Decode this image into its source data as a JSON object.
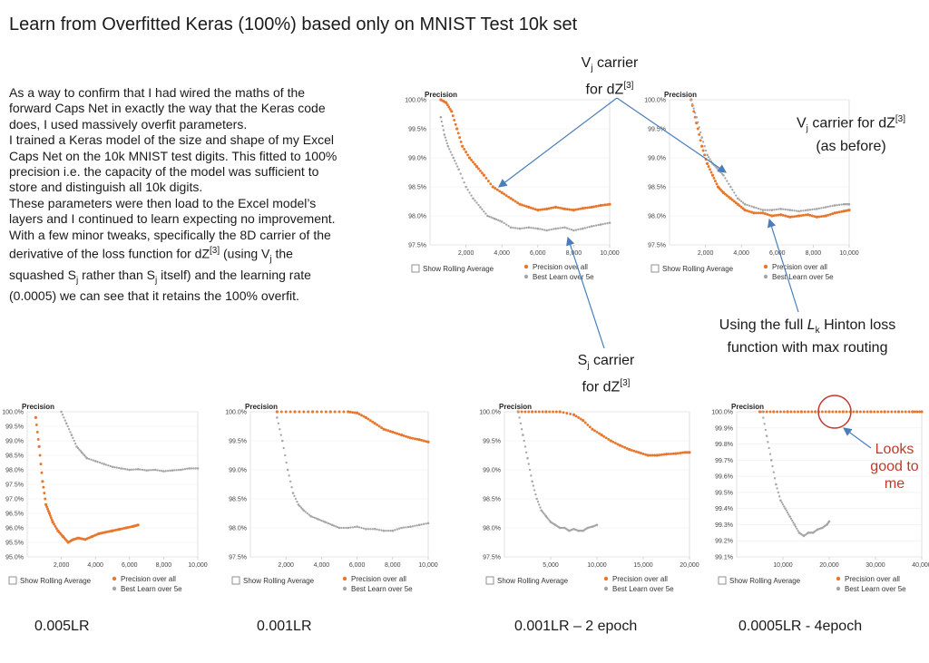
{
  "title": "Learn from Overfitted Keras (100%) based only on MNIST Test 10k set",
  "paragraphs": [
    "As a way to confirm that I had wired the maths of the forward Caps Net in exactly the way that the Keras code does, I used massively overfit parameters.",
    "I trained a Keras model of the size and shape of my Excel Caps Net on the 10k MNIST test digits. This fitted to 100% precision i.e. the capacity of the model was sufficient to store and distinguish all 10k digits.",
    "These parameters were then load to the Excel model’s layers and I continued to learn expecting no improvement."
  ],
  "para_tweak": {
    "a": "With a few minor tweaks, specifically the 8D carrier of the derivative of the loss function for dZ",
    "sup1": "[3]",
    "b": " (using V",
    "sub1": "j",
    "c": " the squashed S",
    "sub2": "j",
    "d": " rather than S",
    "sub3": "j",
    "e": " itself) and the learning rate (0.0005) we can see that it retains the 100% overfit."
  },
  "notes": {
    "vj_top": {
      "l1a": "V",
      "l1sub": "j",
      "l1b": " carrier",
      "l2": "for dZ",
      "sup": "[3]"
    },
    "vj_right": {
      "l1a": "V",
      "l1sub": "j",
      "l1b": " carrier for dZ",
      "sup": "[3]",
      "l2": "(as before)"
    },
    "sj": {
      "l1a": "S",
      "l1sub": "j",
      "l1b": " carrier",
      "l2": "for dZ",
      "sup": "[3]"
    },
    "hinton": {
      "l1a": "Using the full ",
      "l1i": "L",
      "l1sub": "k",
      "l1b": " Hinton loss",
      "l2": "function with max routing"
    },
    "looks_good": {
      "l1": "Looks",
      "l2": "good to",
      "l3": "me"
    }
  },
  "lr_labels": [
    "0.005LR",
    "0.001LR",
    "0.001LR – 2 epoch",
    "0.0005LR - 4epoch"
  ],
  "colors": {
    "orange": "#e8772e",
    "gray": "#a6a6a6",
    "arrow": "#4a7ebb",
    "circle": "#c0392b"
  },
  "chart_data": [
    {
      "type": "scatter",
      "id": "c1",
      "title": "Precision",
      "xticks": [
        "2,000",
        "4,000",
        "6,000",
        "8,000",
        "10,000"
      ],
      "xlim": [
        0,
        10000
      ],
      "yticks": [
        "97.5%",
        "98.0%",
        "98.5%",
        "99.0%",
        "99.5%",
        "100.0%"
      ],
      "ylim": [
        97.5,
        100.0
      ],
      "legend_checkbox": "Show Rolling Average",
      "series": [
        {
          "name": "Precision over all",
          "color": "orange",
          "x": [
            600,
            900,
            1200,
            1500,
            1800,
            2200,
            2600,
            3000,
            3500,
            4000,
            4500,
            5000,
            5500,
            6000,
            6500,
            7000,
            7500,
            8000,
            8500,
            9000,
            9500,
            10000
          ],
          "y": [
            100.0,
            99.95,
            99.8,
            99.5,
            99.2,
            99.0,
            98.85,
            98.7,
            98.5,
            98.4,
            98.3,
            98.2,
            98.15,
            98.1,
            98.12,
            98.15,
            98.12,
            98.1,
            98.13,
            98.15,
            98.18,
            98.2
          ]
        },
        {
          "name": "Best Learn over 5e",
          "color": "gray",
          "x": [
            600,
            800,
            1000,
            1300,
            1600,
            2000,
            2400,
            2800,
            3200,
            3600,
            4000,
            4500,
            5000,
            5500,
            6000,
            6500,
            7000,
            7500,
            8000,
            8500,
            9000,
            9500,
            10000
          ],
          "y": [
            99.7,
            99.4,
            99.2,
            99.0,
            98.8,
            98.5,
            98.3,
            98.15,
            98.0,
            97.95,
            97.9,
            97.8,
            97.78,
            97.8,
            97.78,
            97.75,
            97.78,
            97.8,
            97.75,
            97.78,
            97.82,
            97.85,
            97.88
          ]
        }
      ]
    },
    {
      "type": "scatter",
      "id": "c2",
      "title": "Precision",
      "xticks": [
        "2,000",
        "4,000",
        "6,000",
        "8,000",
        "10,000"
      ],
      "xlim": [
        0,
        10000
      ],
      "yticks": [
        "97.5%",
        "98.0%",
        "98.5%",
        "99.0%",
        "99.5%",
        "100.0%"
      ],
      "ylim": [
        97.5,
        100.0
      ],
      "legend_checkbox": "Show Rolling Average",
      "series": [
        {
          "name": "Precision over all",
          "color": "orange",
          "x": [
            1200,
            1500,
            1800,
            2100,
            2400,
            2700,
            3000,
            3400,
            3800,
            4200,
            4700,
            5200,
            5700,
            6200,
            6700,
            7200,
            7700,
            8200,
            8700,
            9200,
            9700,
            10000
          ],
          "y": [
            100.0,
            99.6,
            99.2,
            98.9,
            98.7,
            98.5,
            98.4,
            98.3,
            98.2,
            98.1,
            98.05,
            98.05,
            98.0,
            98.02,
            97.98,
            98.0,
            98.02,
            97.98,
            98.0,
            98.05,
            98.08,
            98.1
          ]
        },
        {
          "name": "Best Learn over 5e",
          "color": "gray",
          "x": [
            1200,
            1500,
            1800,
            2100,
            2400,
            2700,
            3000,
            3400,
            3800,
            4200,
            4700,
            5200,
            5700,
            6200,
            6700,
            7200,
            7700,
            8200,
            8700,
            9200,
            9700,
            10000
          ],
          "y": [
            100.0,
            99.7,
            99.35,
            99.05,
            98.9,
            98.8,
            98.7,
            98.5,
            98.3,
            98.2,
            98.15,
            98.1,
            98.1,
            98.12,
            98.1,
            98.08,
            98.1,
            98.12,
            98.15,
            98.18,
            98.2,
            98.2
          ]
        }
      ]
    },
    {
      "type": "scatter",
      "id": "c3",
      "title": "Precision",
      "xticks": [
        "2,000",
        "4,000",
        "6,000",
        "8,000",
        "10,000"
      ],
      "xlim": [
        0,
        10000
      ],
      "yticks": [
        "95.0%",
        "95.5%",
        "96.0%",
        "96.5%",
        "97.0%",
        "97.5%",
        "98.0%",
        "98.5%",
        "99.0%",
        "99.5%",
        "100.0%"
      ],
      "ylim": [
        95.0,
        100.0
      ],
      "legend_checkbox": "Show Rolling Average",
      "series": [
        {
          "name": "Precision over all",
          "color": "orange",
          "x": [
            500,
            700,
            900,
            1100,
            1300,
            1500,
            1800,
            2100,
            2400,
            2700,
            3000,
            3400,
            3800,
            4200,
            4600,
            5000,
            5400,
            5800,
            6200,
            6500
          ],
          "y": [
            99.8,
            98.8,
            97.6,
            96.8,
            96.5,
            96.2,
            95.9,
            95.7,
            95.5,
            95.6,
            95.65,
            95.6,
            95.7,
            95.8,
            95.85,
            95.9,
            95.95,
            96.0,
            96.05,
            96.1
          ]
        },
        {
          "name": "Best Learn over 5e",
          "color": "gray",
          "x": [
            2000,
            2300,
            2600,
            2900,
            3200,
            3500,
            4000,
            4500,
            5000,
            5500,
            6000,
            6500,
            7000,
            7500,
            8000,
            8500,
            9000,
            9500,
            10000
          ],
          "y": [
            100.0,
            99.6,
            99.2,
            98.8,
            98.6,
            98.4,
            98.3,
            98.2,
            98.1,
            98.05,
            98.0,
            98.02,
            97.98,
            98.0,
            97.95,
            97.98,
            98.0,
            98.05,
            98.05
          ]
        }
      ]
    },
    {
      "type": "scatter",
      "id": "c4",
      "title": "Precision",
      "xticks": [
        "2,000",
        "4,000",
        "6,000",
        "8,000",
        "10,000"
      ],
      "xlim": [
        0,
        10000
      ],
      "yticks": [
        "97.5%",
        "98.0%",
        "98.5%",
        "99.0%",
        "99.5%",
        "100.0%"
      ],
      "ylim": [
        97.5,
        100.0
      ],
      "legend_checkbox": "Show Rolling Average",
      "series": [
        {
          "name": "Precision over all",
          "color": "orange",
          "x": [
            1500,
            2500,
            3500,
            4500,
            5500,
            6000,
            6500,
            7000,
            7500,
            8000,
            8500,
            9000,
            9500,
            10000
          ],
          "y": [
            100.0,
            100.0,
            100.0,
            100.0,
            100.0,
            99.98,
            99.9,
            99.8,
            99.7,
            99.65,
            99.6,
            99.55,
            99.52,
            99.48
          ]
        },
        {
          "name": "Best Learn over 5e",
          "color": "gray",
          "x": [
            1500,
            1800,
            2100,
            2400,
            2700,
            3000,
            3400,
            3800,
            4200,
            4600,
            5000,
            5500,
            6000,
            6500,
            7000,
            7500,
            8000,
            8500,
            9000,
            9500,
            10000
          ],
          "y": [
            99.9,
            99.5,
            99.0,
            98.6,
            98.4,
            98.3,
            98.2,
            98.15,
            98.1,
            98.05,
            98.0,
            98.0,
            98.02,
            97.98,
            97.98,
            97.95,
            97.95,
            98.0,
            98.02,
            98.05,
            98.08
          ]
        }
      ]
    },
    {
      "type": "scatter",
      "id": "c5",
      "title": "Precision",
      "xticks": [
        "5,000",
        "10,000",
        "15,000",
        "20,000"
      ],
      "xlim": [
        0,
        20000
      ],
      "yticks": [
        "97.5%",
        "98.0%",
        "98.5%",
        "99.0%",
        "99.5%",
        "100.0%"
      ],
      "ylim": [
        97.5,
        100.0
      ],
      "legend_checkbox": "Show Rolling Average",
      "series": [
        {
          "name": "Precision over all",
          "color": "orange",
          "x": [
            1500,
            3000,
            4500,
            6000,
            7500,
            8500,
            9500,
            10500,
            11500,
            12500,
            13500,
            14500,
            15500,
            16500,
            17500,
            18500,
            19500,
            20000
          ],
          "y": [
            100.0,
            100.0,
            100.0,
            100.0,
            99.95,
            99.85,
            99.7,
            99.6,
            99.5,
            99.42,
            99.35,
            99.3,
            99.25,
            99.25,
            99.27,
            99.28,
            99.3,
            99.3
          ]
        },
        {
          "name": "Best Learn over 5e",
          "color": "gray",
          "x": [
            1500,
            2000,
            2500,
            3000,
            3500,
            4000,
            4500,
            5000,
            5500,
            6000,
            6500,
            7000,
            7500,
            8000,
            8500,
            9000,
            9500,
            10000
          ],
          "y": [
            100.0,
            99.6,
            99.2,
            98.8,
            98.5,
            98.3,
            98.2,
            98.1,
            98.05,
            98.0,
            98.0,
            97.95,
            97.98,
            97.95,
            97.95,
            98.0,
            98.02,
            98.05
          ]
        }
      ]
    },
    {
      "type": "scatter",
      "id": "c6",
      "title": "Precision",
      "xticks": [
        "10,000",
        "20,000",
        "30,000",
        "40,000"
      ],
      "xlim": [
        0,
        40000
      ],
      "yticks": [
        "99.1%",
        "99.2%",
        "99.3%",
        "99.4%",
        "99.5%",
        "99.6%",
        "99.7%",
        "99.8%",
        "99.9%",
        "100.0%"
      ],
      "ylim": [
        99.1,
        100.0
      ],
      "legend_checkbox": "Show Rolling Average",
      "series": [
        {
          "name": "Precision over all",
          "color": "orange",
          "x": [
            5000,
            8000,
            11000,
            14000,
            17000,
            20000,
            23000,
            26000,
            29000,
            32000,
            35000,
            38000,
            40000
          ],
          "y": [
            100.0,
            100.0,
            100.0,
            100.0,
            100.0,
            100.0,
            100.0,
            100.0,
            100.0,
            100.0,
            100.0,
            100.0,
            100.0
          ]
        },
        {
          "name": "Best Learn over 5e",
          "color": "gray",
          "x": [
            5500,
            6500,
            7500,
            8500,
            9500,
            10500,
            11500,
            12500,
            13500,
            14500,
            15500,
            16500,
            17500,
            18500,
            19500,
            20000
          ],
          "y": [
            100.0,
            99.85,
            99.7,
            99.55,
            99.45,
            99.4,
            99.35,
            99.3,
            99.25,
            99.23,
            99.25,
            99.25,
            99.27,
            99.28,
            99.3,
            99.32
          ]
        }
      ]
    }
  ]
}
